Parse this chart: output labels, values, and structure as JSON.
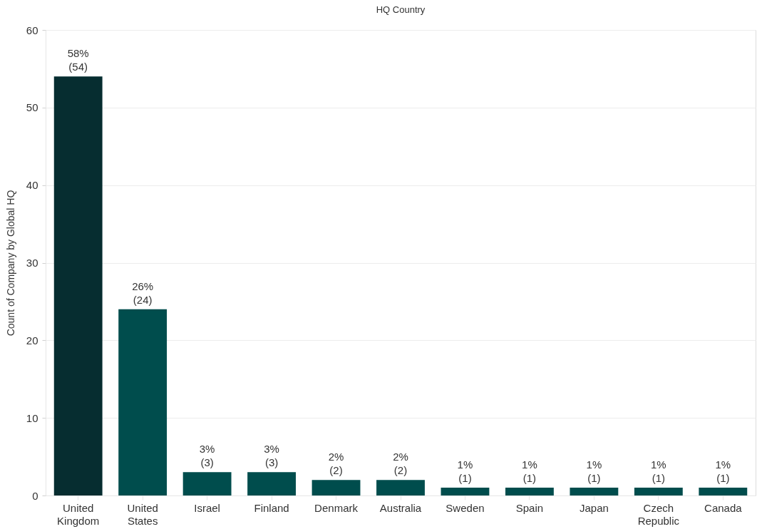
{
  "chart_data": {
    "type": "bar",
    "title": "HQ Country",
    "ylabel": "Count of Company by Global HQ",
    "categories": [
      "United Kingdom",
      "United States",
      "Israel",
      "Finland",
      "Denmark",
      "Australia",
      "Sweden",
      "Spain",
      "Japan",
      "Czech Republic",
      "Canada"
    ],
    "values": [
      54,
      24,
      3,
      3,
      2,
      2,
      1,
      1,
      1,
      1,
      1
    ],
    "colors": [
      "#062d30",
      "#004d4d",
      "#004d4d",
      "#004d4d",
      "#004d4d",
      "#004d4d",
      "#004d4d",
      "#004d4d",
      "#004d4d",
      "#004d4d",
      "#004d4d"
    ],
    "value_labels": [
      "58%\n(54)",
      "26%\n(24)",
      "3%\n(3)",
      "3%\n(3)",
      "2%\n(2)",
      "2%\n(2)",
      "1%\n(1)",
      "1%\n(1)",
      "1%\n(1)",
      "1%\n(1)",
      "1%\n(1)"
    ],
    "ylim": [
      0,
      60
    ],
    "yticks": [
      0,
      10,
      20,
      30,
      40,
      50,
      60
    ],
    "grid": "y"
  }
}
